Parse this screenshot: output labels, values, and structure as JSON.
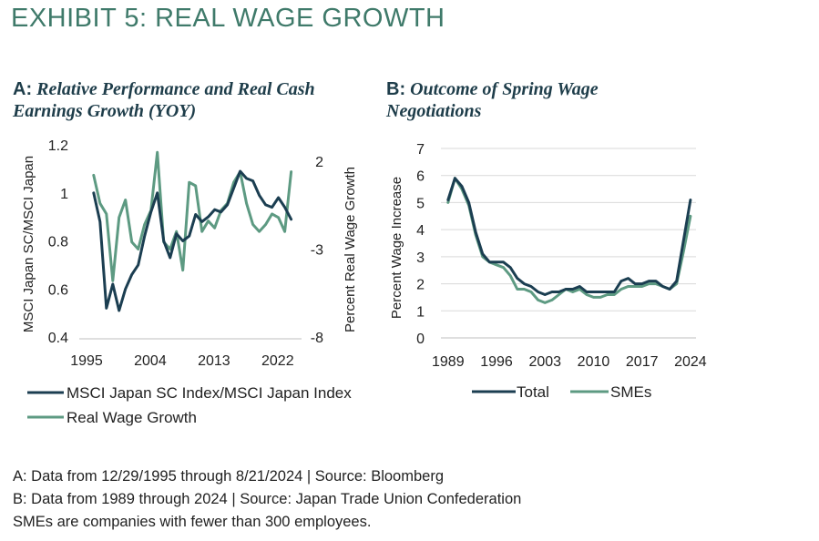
{
  "title": "EXHIBIT 5: REAL WAGE GROWTH",
  "colors": {
    "dark": "#1b3e51",
    "light": "#5d9a82",
    "title": "#3f7a6a",
    "grid": "#d9d9d9"
  },
  "panel_a": {
    "letter": "A:",
    "title": "Relative Performance and Real Cash Earnings Growth (YOY)"
  },
  "panel_b": {
    "letter": "B:",
    "title": "Outcome of Spring Wage Negotiations"
  },
  "notes": [
    "A: Data from 12/29/1995 through 8/21/2024 | Source: Bloomberg",
    "B: Data from 1989 through 2024 | Source: Japan Trade Union Confederation",
    "SMEs are companies with fewer than 300 employees."
  ],
  "chart_data": [
    {
      "type": "line",
      "xlim": [
        1995,
        2024.6
      ],
      "x_ticks": [
        "1995",
        "2004",
        "2013",
        "2022"
      ],
      "x_tick_values": [
        1995,
        2004,
        2013,
        2022
      ],
      "ylabel": "MSCI Japan SC/MSCI Japan",
      "ylim": [
        0.4,
        1.2
      ],
      "y_ticks": [
        "0.4",
        "0.6",
        "0.8",
        "1",
        "1.2"
      ],
      "y_tick_values": [
        0.4,
        0.6,
        0.8,
        1.0,
        1.2
      ],
      "y2label": "Percent Real Wage Growth",
      "y2lim": [
        -8,
        2
      ],
      "y2_ticks": [
        "-8",
        "-3",
        "2"
      ],
      "y2_tick_values": [
        -8,
        -3,
        2
      ],
      "grid": false,
      "legend_position": "bottom",
      "series": [
        {
          "name": "MSCI Japan SC Index/MSCI Japan Index",
          "axis": "left",
          "color": "#1b3e51",
          "x": [
            1996.0,
            1996.9,
            1997.8,
            1998.7,
            1999.6,
            2000.5,
            2001.4,
            2002.3,
            2003.2,
            2004.1,
            2005.0,
            2005.9,
            2006.8,
            2007.7,
            2008.6,
            2009.5,
            2010.4,
            2011.3,
            2012.2,
            2013.1,
            2014.0,
            2014.9,
            2015.8,
            2016.7,
            2017.6,
            2018.5,
            2019.4,
            2020.3,
            2021.2,
            2022.1,
            2023.0,
            2023.9
          ],
          "y": [
            1.0,
            0.88,
            0.52,
            0.62,
            0.51,
            0.6,
            0.66,
            0.7,
            0.82,
            0.92,
            1.0,
            0.8,
            0.73,
            0.83,
            0.8,
            0.82,
            0.91,
            0.88,
            0.9,
            0.93,
            0.92,
            0.95,
            1.02,
            1.09,
            1.06,
            1.05,
            0.99,
            0.95,
            0.94,
            0.98,
            0.94,
            0.89
          ]
        },
        {
          "name": "Real Wage Growth",
          "axis": "right",
          "color": "#5d9a82",
          "x": [
            1996.0,
            1996.9,
            1997.8,
            1998.7,
            1999.6,
            2000.5,
            2001.4,
            2002.3,
            2003.2,
            2004.1,
            2005.0,
            2005.9,
            2006.8,
            2007.7,
            2008.6,
            2009.5,
            2010.4,
            2011.3,
            2012.2,
            2013.1,
            2014.0,
            2014.9,
            2015.8,
            2016.7,
            2017.6,
            2018.5,
            2019.4,
            2020.3,
            2021.2,
            2022.1,
            2023.0,
            2023.9
          ],
          "y": [
            1.2,
            -0.4,
            -1.0,
            -4.8,
            -1.2,
            -0.2,
            -2.6,
            -3.0,
            -1.6,
            -0.8,
            2.5,
            -2.6,
            -3.0,
            -2.0,
            -4.2,
            0.8,
            0.6,
            -2.0,
            -1.4,
            -1.8,
            -0.8,
            -0.4,
            0.8,
            1.4,
            -0.4,
            -1.6,
            -2.0,
            -1.6,
            -1.0,
            -1.2,
            -2.0,
            1.4
          ]
        }
      ]
    },
    {
      "type": "line",
      "xlim": [
        1988.5,
        2024.8
      ],
      "x_ticks": [
        "1989",
        "1996",
        "2003",
        "2010",
        "2017",
        "2024"
      ],
      "x_tick_values": [
        1989,
        1996,
        2003,
        2010,
        2017,
        2024
      ],
      "ylabel": "Percent Wage Increase",
      "ylim": [
        0,
        7
      ],
      "y_ticks": [
        "0",
        "1",
        "2",
        "3",
        "4",
        "5",
        "6",
        "7"
      ],
      "y_tick_values": [
        0,
        1,
        2,
        3,
        4,
        5,
        6,
        7
      ],
      "grid": true,
      "legend_position": "bottom",
      "series": [
        {
          "name": "Total",
          "color": "#1b3e51",
          "x": [
            1989,
            1990,
            1991,
            1992,
            1993,
            1994,
            1995,
            1996,
            1997,
            1998,
            1999,
            2000,
            2001,
            2002,
            2003,
            2004,
            2005,
            2006,
            2007,
            2008,
            2009,
            2010,
            2011,
            2012,
            2013,
            2014,
            2015,
            2016,
            2017,
            2018,
            2019,
            2020,
            2021,
            2022,
            2023,
            2024
          ],
          "y": [
            5.1,
            5.9,
            5.6,
            5.0,
            3.9,
            3.1,
            2.8,
            2.8,
            2.8,
            2.6,
            2.2,
            2.0,
            1.9,
            1.7,
            1.6,
            1.7,
            1.7,
            1.8,
            1.8,
            1.9,
            1.7,
            1.7,
            1.7,
            1.7,
            1.7,
            2.1,
            2.2,
            2.0,
            2.0,
            2.1,
            2.1,
            1.9,
            1.8,
            2.1,
            3.6,
            5.1
          ]
        },
        {
          "name": "SMEs",
          "color": "#5d9a82",
          "x": [
            1989,
            1990,
            1991,
            1992,
            1993,
            1994,
            1995,
            1996,
            1997,
            1998,
            1999,
            2000,
            2001,
            2002,
            2003,
            2004,
            2005,
            2006,
            2007,
            2008,
            2009,
            2010,
            2011,
            2012,
            2013,
            2014,
            2015,
            2016,
            2017,
            2018,
            2019,
            2020,
            2021,
            2022,
            2023,
            2024
          ],
          "y": [
            5.0,
            5.9,
            5.5,
            4.9,
            3.8,
            3.0,
            2.8,
            2.7,
            2.6,
            2.3,
            1.8,
            1.8,
            1.7,
            1.4,
            1.3,
            1.4,
            1.6,
            1.8,
            1.7,
            1.8,
            1.6,
            1.5,
            1.5,
            1.6,
            1.6,
            1.8,
            1.9,
            1.9,
            1.9,
            2.0,
            2.0,
            1.9,
            1.8,
            2.0,
            3.2,
            4.5
          ]
        }
      ]
    }
  ]
}
